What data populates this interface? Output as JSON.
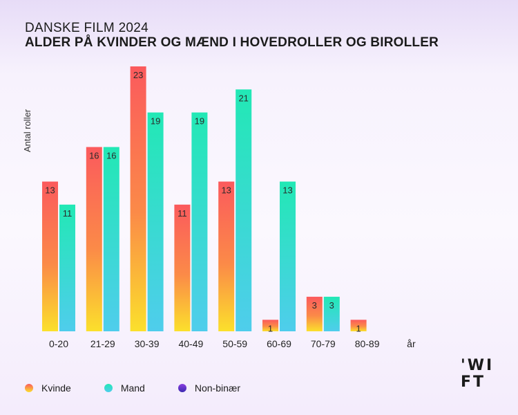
{
  "header": {
    "kicker": "DANSKE FILM 2024",
    "title": "ALDER PÅ KVINDER OG MÆND I HOVEDROLLER OG BIROLLER"
  },
  "chart_data": {
    "type": "bar",
    "ylabel": "Antal roller",
    "xlabel": "",
    "categories": [
      "0-20",
      "21-29",
      "30-39",
      "40-49",
      "50-59",
      "60-69",
      "70-79",
      "80-89",
      "år"
    ],
    "series": [
      {
        "name": "Kvinde",
        "values": [
          13,
          16,
          23,
          11,
          13,
          1,
          3,
          1,
          null
        ]
      },
      {
        "name": "Mand",
        "values": [
          11,
          16,
          19,
          19,
          21,
          13,
          3,
          null,
          null
        ]
      },
      {
        "name": "Non-binær",
        "values": [
          null,
          null,
          null,
          null,
          null,
          null,
          null,
          null,
          null
        ]
      }
    ],
    "ylim": [
      0,
      23
    ],
    "grid": false,
    "legend": "bottom-left"
  },
  "colors": {
    "kvinde_top": "#fb5a5d",
    "kvinde_bottom": "#fbe02c",
    "mand_top": "#22e8b5",
    "mand_bottom": "#4fcdec",
    "nonbinaer_top": "#8b3fe0",
    "nonbinaer_bottom": "#3b2ab0"
  },
  "legend": {
    "items": [
      "Kvinde",
      "Mand",
      "Non-binær"
    ]
  },
  "logo": {
    "line1": "'WI",
    "line2": "FT"
  }
}
